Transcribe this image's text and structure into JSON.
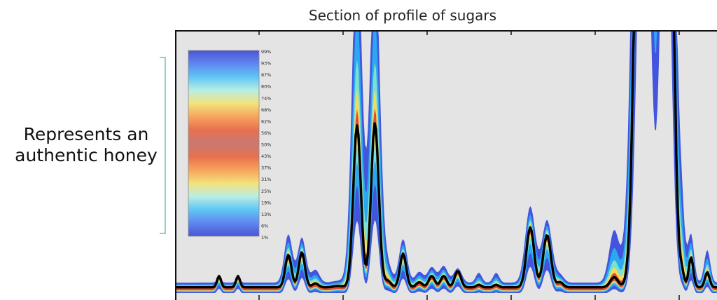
{
  "chart_data": {
    "type": "area",
    "title": "Section of profile of sugars",
    "annotation": "Represents an authentic honey",
    "annotation_lines": [
      "Represents an",
      "authentic honey"
    ],
    "xlabel": "",
    "ylabel": "",
    "plot_background": "#e4e4e4",
    "colorbar": {
      "ticks": [
        "99%",
        "93%",
        "87%",
        "80%",
        "74%",
        "68%",
        "62%",
        "56%",
        "50%",
        "43%",
        "37%",
        "31%",
        "25%",
        "19%",
        "13%",
        "6%",
        "1%"
      ],
      "colors": [
        "#4a55d6",
        "#5f86f0",
        "#5fc6f4",
        "#b9eee4",
        "#f3e27a",
        "#f7a35c",
        "#e7704e",
        "#c87a74",
        "#e7704e",
        "#f7a35c",
        "#f3e27a",
        "#b9eee4",
        "#5fc6f4",
        "#5f86f0",
        "#4a55d6"
      ]
    },
    "band_colors": {
      "outer": "#4455dd",
      "mid": "#2aa8f0",
      "inner": "#7ee0d0",
      "core": "#f5dc5a",
      "center": "#e24a2f"
    },
    "profile_color": "#000000",
    "peaks": [
      {
        "x": 0.08,
        "w": 0.005,
        "profile": 0.045,
        "spread": 0.3
      },
      {
        "x": 0.115,
        "w": 0.005,
        "profile": 0.045,
        "spread": 0.3
      },
      {
        "x": 0.208,
        "w": 0.008,
        "profile": 0.13,
        "spread": 1.5
      },
      {
        "x": 0.233,
        "w": 0.008,
        "profile": 0.14,
        "spread": 1.3
      },
      {
        "x": 0.258,
        "w": 0.008,
        "profile": 0.015,
        "spread": 3.5
      },
      {
        "x": 0.3,
        "w": 0.012,
        "profile": 0.005,
        "spread": 1.6
      },
      {
        "x": 0.335,
        "w": 0.01,
        "profile": 0.65,
        "spread": 2.1
      },
      {
        "x": 0.368,
        "w": 0.01,
        "profile": 0.66,
        "spread": 2.0
      },
      {
        "x": 0.392,
        "w": 0.008,
        "profile": 0.025,
        "spread": 2.6
      },
      {
        "x": 0.42,
        "w": 0.008,
        "profile": 0.135,
        "spread": 1.3
      },
      {
        "x": 0.45,
        "w": 0.008,
        "profile": 0.02,
        "spread": 2.2
      },
      {
        "x": 0.473,
        "w": 0.008,
        "profile": 0.045,
        "spread": 1.4
      },
      {
        "x": 0.495,
        "w": 0.008,
        "profile": 0.045,
        "spread": 1.5
      },
      {
        "x": 0.521,
        "w": 0.008,
        "profile": 0.065,
        "spread": 0.9
      },
      {
        "x": 0.56,
        "w": 0.006,
        "profile": 0.01,
        "spread": 4.0
      },
      {
        "x": 0.592,
        "w": 0.006,
        "profile": 0.01,
        "spread": 4.0
      },
      {
        "x": 0.655,
        "w": 0.01,
        "profile": 0.24,
        "spread": 1.28
      },
      {
        "x": 0.686,
        "w": 0.01,
        "profile": 0.21,
        "spread": 1.2
      },
      {
        "x": 0.71,
        "w": 0.008,
        "profile": 0.02,
        "spread": 1.5
      },
      {
        "x": 0.81,
        "w": 0.01,
        "profile": 0.04,
        "spread": 5.2
      },
      {
        "x": 0.865,
        "w": 0.016,
        "profile": 4.5,
        "spread": 1.0
      },
      {
        "x": 0.905,
        "w": 0.014,
        "profile": 4.0,
        "spread": 1.0
      },
      {
        "x": 0.935,
        "w": 0.006,
        "profile": 0.05,
        "spread": 3.5
      },
      {
        "x": 0.952,
        "w": 0.006,
        "profile": 0.12,
        "spread": 1.6
      },
      {
        "x": 0.982,
        "w": 0.006,
        "profile": 0.06,
        "spread": 2.2
      }
    ]
  }
}
